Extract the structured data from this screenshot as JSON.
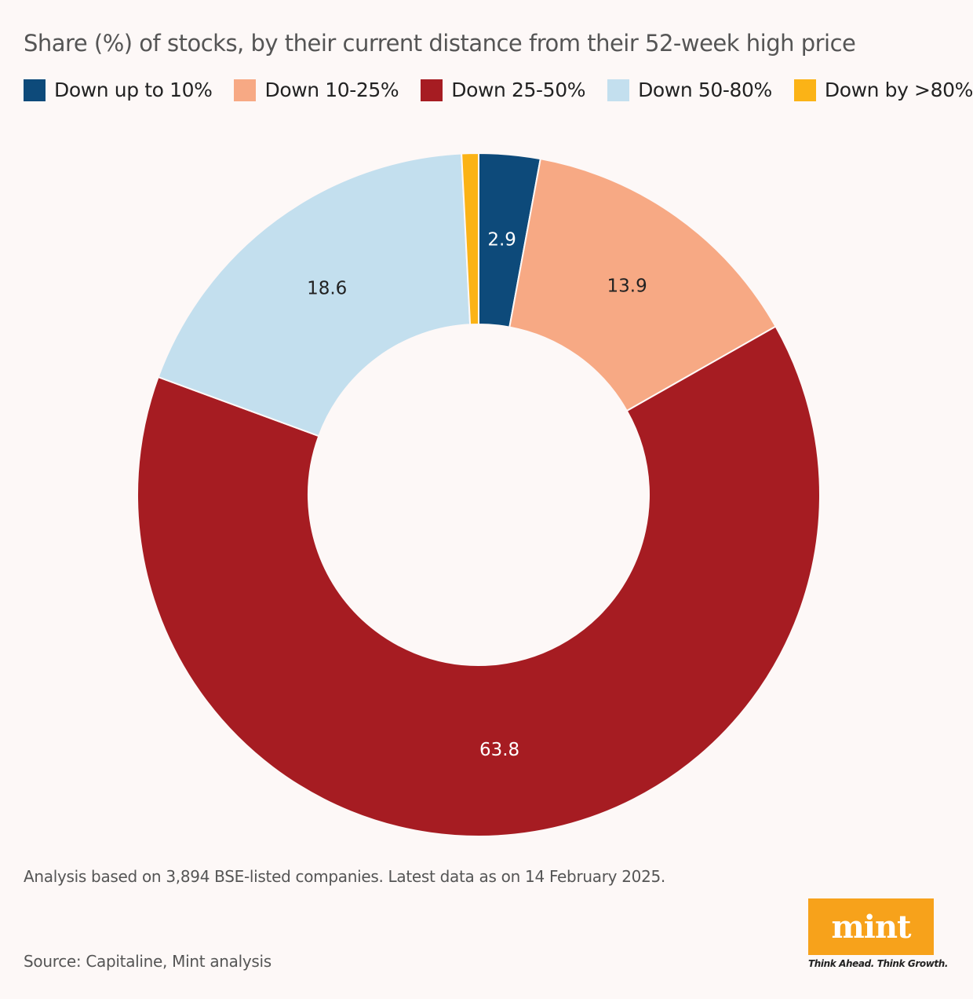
{
  "colors": {
    "background": "#fdf8f7",
    "series": [
      "#0d4a7a",
      "#f7a984",
      "#a61c22",
      "#c3dfee",
      "#fbb316"
    ],
    "logo_bg": "#f7a21b"
  },
  "chart_data": {
    "type": "pie",
    "donut": true,
    "title": "Share (%) of stocks, by their current distance from their 52-week high price",
    "legend_position": "top",
    "categories": [
      "Down up to 10%",
      "Down 10-25%",
      "Down 25-50%",
      "Down 50-80%",
      "Down by >80%"
    ],
    "values": [
      2.9,
      13.9,
      63.8,
      18.6,
      0.8
    ],
    "data_labels": [
      "2.9",
      "13.9",
      "63.8",
      "18.6",
      ""
    ],
    "label_colors": [
      "#ffffff",
      "#222222",
      "#ffffff",
      "#222222",
      "#222222"
    ]
  },
  "footnote": "Analysis based on 3,894 BSE-listed companies. Latest data as on 14 February 2025.",
  "source": "Source: Capitaline, Mint analysis",
  "logo": {
    "word": "mint",
    "tagline": "Think Ahead. Think Growth."
  }
}
